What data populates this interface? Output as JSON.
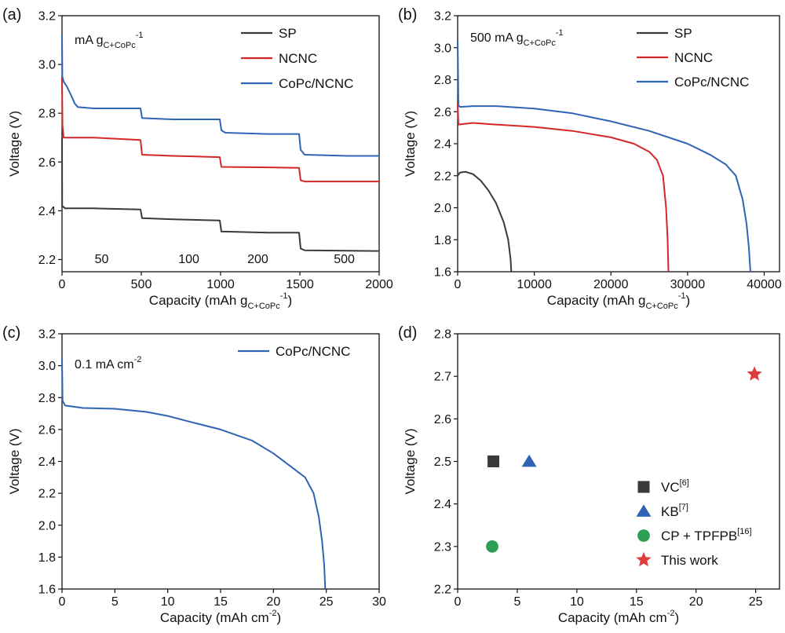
{
  "chart_data": [
    {
      "panel": "(a)",
      "type": "line",
      "title": "",
      "condition_text": [
        "mA g",
        "C+CoPc",
        "-1"
      ],
      "xlabel": [
        "Capacity (mAh g",
        "C+CoPc",
        "-1",
        ")"
      ],
      "ylabel": "Voltage (V)",
      "xlim": [
        0,
        2000
      ],
      "ylim": [
        2.15,
        3.2
      ],
      "xticks": [
        0,
        500,
        1000,
        1500,
        2000
      ],
      "xtick_labels": [
        "0",
        "500",
        "1000",
        "1500",
        "2000"
      ],
      "yticks": [
        2.2,
        2.4,
        2.6,
        2.8,
        3.0,
        3.2
      ],
      "ytick_labels": [
        "2.2",
        "2.4",
        "2.6",
        "2.8",
        "3.0",
        "3.2"
      ],
      "legend": [
        "SP",
        "NCNC",
        "CoPc/NCNC"
      ],
      "legend_position": "top-right",
      "annotations": [
        {
          "text": "50",
          "x": 250
        },
        {
          "text": "100",
          "x": 800
        },
        {
          "text": "200",
          "x": 1235
        },
        {
          "text": "500",
          "x": 1780
        }
      ],
      "series": [
        {
          "name": "SP",
          "color": "#3a3a3a",
          "points": [
            [
              0,
              2.7
            ],
            [
              1,
              2.42
            ],
            [
              20,
              2.41
            ],
            [
              200,
              2.41
            ],
            [
              495,
              2.405
            ],
            [
              505,
              2.37
            ],
            [
              700,
              2.365
            ],
            [
              995,
              2.36
            ],
            [
              1005,
              2.315
            ],
            [
              1300,
              2.31
            ],
            [
              1495,
              2.31
            ],
            [
              1505,
              2.245
            ],
            [
              1530,
              2.238
            ],
            [
              1800,
              2.236
            ],
            [
              2000,
              2.235
            ]
          ]
        },
        {
          "name": "NCNC",
          "color": "#d62728",
          "points": [
            [
              0,
              2.95
            ],
            [
              3,
              2.75
            ],
            [
              10,
              2.7
            ],
            [
              200,
              2.7
            ],
            [
              495,
              2.69
            ],
            [
              505,
              2.63
            ],
            [
              700,
              2.625
            ],
            [
              995,
              2.62
            ],
            [
              1005,
              2.58
            ],
            [
              1300,
              2.578
            ],
            [
              1495,
              2.576
            ],
            [
              1505,
              2.525
            ],
            [
              1530,
              2.52
            ],
            [
              1800,
              2.52
            ],
            [
              2000,
              2.52
            ]
          ]
        },
        {
          "name": "CoPc/NCNC",
          "color": "#2f64b4",
          "points": [
            [
              0,
              3.12
            ],
            [
              2,
              2.95
            ],
            [
              10,
              2.93
            ],
            [
              30,
              2.91
            ],
            [
              60,
              2.87
            ],
            [
              80,
              2.84
            ],
            [
              100,
              2.825
            ],
            [
              200,
              2.82
            ],
            [
              495,
              2.82
            ],
            [
              505,
              2.78
            ],
            [
              700,
              2.775
            ],
            [
              995,
              2.775
            ],
            [
              1005,
              2.73
            ],
            [
              1030,
              2.72
            ],
            [
              1300,
              2.715
            ],
            [
              1495,
              2.715
            ],
            [
              1505,
              2.65
            ],
            [
              1530,
              2.63
            ],
            [
              1800,
              2.625
            ],
            [
              2000,
              2.625
            ]
          ]
        }
      ]
    },
    {
      "panel": "(b)",
      "type": "line",
      "title": "",
      "condition_text": [
        "500 mA g",
        "C+CoPc",
        "-1"
      ],
      "xlabel": [
        "Capacity (mAh g",
        "C+CoPc",
        "-1",
        ")"
      ],
      "ylabel": "Voltage (V)",
      "xlim": [
        0,
        42000
      ],
      "ylim": [
        1.6,
        3.2
      ],
      "xticks": [
        0,
        10000,
        20000,
        30000,
        40000
      ],
      "xtick_labels": [
        "0",
        "10000",
        "20000",
        "30000",
        "40000"
      ],
      "yticks": [
        1.6,
        1.8,
        2.0,
        2.2,
        2.4,
        2.6,
        2.8,
        3.0,
        3.2
      ],
      "ytick_labels": [
        "1.6",
        "1.8",
        "2.0",
        "2.2",
        "2.4",
        "2.6",
        "2.8",
        "3.0",
        "3.2"
      ],
      "legend": [
        "SP",
        "NCNC",
        "CoPc/NCNC"
      ],
      "legend_position": "top-right",
      "series": [
        {
          "name": "SP",
          "color": "#3a3a3a",
          "points": [
            [
              0,
              2.2
            ],
            [
              300,
              2.22
            ],
            [
              1000,
              2.225
            ],
            [
              2000,
              2.21
            ],
            [
              3000,
              2.17
            ],
            [
              4000,
              2.11
            ],
            [
              5000,
              2.03
            ],
            [
              6000,
              1.91
            ],
            [
              6600,
              1.8
            ],
            [
              6900,
              1.68
            ],
            [
              7000,
              1.6
            ]
          ]
        },
        {
          "name": "NCNC",
          "color": "#d62728",
          "points": [
            [
              0,
              2.65
            ],
            [
              100,
              2.52
            ],
            [
              2000,
              2.53
            ],
            [
              5000,
              2.52
            ],
            [
              10000,
              2.505
            ],
            [
              15000,
              2.48
            ],
            [
              20000,
              2.44
            ],
            [
              23000,
              2.4
            ],
            [
              25000,
              2.35
            ],
            [
              26000,
              2.3
            ],
            [
              26800,
              2.2
            ],
            [
              27200,
              2.0
            ],
            [
              27400,
              1.8
            ],
            [
              27500,
              1.6
            ]
          ]
        },
        {
          "name": "CoPc/NCNC",
          "color": "#2f64b4",
          "points": [
            [
              0,
              3.05
            ],
            [
              100,
              2.64
            ],
            [
              300,
              2.63
            ],
            [
              2000,
              2.635
            ],
            [
              5000,
              2.635
            ],
            [
              10000,
              2.62
            ],
            [
              15000,
              2.59
            ],
            [
              20000,
              2.54
            ],
            [
              25000,
              2.48
            ],
            [
              30000,
              2.4
            ],
            [
              33000,
              2.33
            ],
            [
              35000,
              2.27
            ],
            [
              36300,
              2.2
            ],
            [
              37200,
              2.05
            ],
            [
              37700,
              1.9
            ],
            [
              38000,
              1.75
            ],
            [
              38200,
              1.6
            ]
          ]
        }
      ]
    },
    {
      "panel": "(c)",
      "type": "line",
      "title": "",
      "condition_text": [
        "0.1 mA cm",
        "-2"
      ],
      "xlabel": [
        "Capacity (mAh cm",
        "-2",
        ")"
      ],
      "ylabel": "Voltage (V)",
      "xlim": [
        0,
        30
      ],
      "ylim": [
        1.6,
        3.2
      ],
      "xticks": [
        0,
        5,
        10,
        15,
        20,
        25,
        30
      ],
      "xtick_labels": [
        "0",
        "5",
        "10",
        "15",
        "20",
        "25",
        "30"
      ],
      "yticks": [
        1.6,
        1.8,
        2.0,
        2.2,
        2.4,
        2.6,
        2.8,
        3.0,
        3.2
      ],
      "ytick_labels": [
        "1.6",
        "1.8",
        "2.0",
        "2.2",
        "2.4",
        "2.6",
        "2.8",
        "3.0",
        "3.2"
      ],
      "legend": [
        "CoPc/NCNC"
      ],
      "legend_position": "top-right",
      "series": [
        {
          "name": "CoPc/NCNC",
          "color": "#2f64b4",
          "points": [
            [
              0,
              3.05
            ],
            [
              0.05,
              2.78
            ],
            [
              0.3,
              2.75
            ],
            [
              2,
              2.735
            ],
            [
              5,
              2.73
            ],
            [
              8,
              2.71
            ],
            [
              10,
              2.685
            ],
            [
              12,
              2.65
            ],
            [
              15,
              2.6
            ],
            [
              18,
              2.53
            ],
            [
              20,
              2.45
            ],
            [
              22,
              2.35
            ],
            [
              23,
              2.3
            ],
            [
              23.8,
              2.2
            ],
            [
              24.3,
              2.05
            ],
            [
              24.6,
              1.9
            ],
            [
              24.8,
              1.75
            ],
            [
              24.9,
              1.6
            ]
          ]
        }
      ]
    },
    {
      "panel": "(d)",
      "type": "scatter",
      "title": "",
      "xlabel": [
        "Capacity (mAh cm",
        "-2",
        ")"
      ],
      "ylabel": "Voltage (V)",
      "xlim": [
        0,
        27
      ],
      "ylim": [
        2.2,
        2.8
      ],
      "xticks": [
        0,
        5,
        10,
        15,
        20,
        25
      ],
      "xtick_labels": [
        "0",
        "5",
        "10",
        "15",
        "20",
        "25"
      ],
      "yticks": [
        2.2,
        2.3,
        2.4,
        2.5,
        2.6,
        2.7,
        2.8
      ],
      "ytick_labels": [
        "2.2",
        "2.3",
        "2.4",
        "2.5",
        "2.6",
        "2.7",
        "2.8"
      ],
      "legend_position": "bottom-right",
      "points": [
        {
          "label": "VC",
          "ref": "[6]",
          "x": 3.0,
          "y": 2.5,
          "marker": "square",
          "color": "#3a3a3a"
        },
        {
          "label": "KB",
          "ref": "[7]",
          "x": 6.0,
          "y": 2.5,
          "marker": "triangle",
          "color": "#2f64b4"
        },
        {
          "label": "CP + TPFPB",
          "ref": "[16]",
          "x": 2.9,
          "y": 2.3,
          "marker": "circle",
          "color": "#2e9e55"
        },
        {
          "label": "This work",
          "ref": "",
          "x": 24.9,
          "y": 2.705,
          "marker": "star",
          "color": "#e03c3c"
        }
      ]
    }
  ]
}
